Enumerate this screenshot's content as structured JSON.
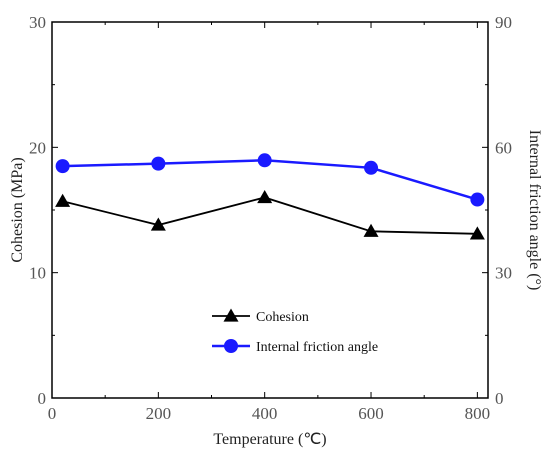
{
  "chart_data": {
    "type": "line",
    "x": [
      20,
      200,
      400,
      600,
      800
    ],
    "xlabel": "Temperature (℃)",
    "xlim": [
      0,
      820
    ],
    "xticks": [
      0,
      200,
      400,
      600,
      800
    ],
    "ylabel_left": "Cohesion (MPa)",
    "ylim_left": [
      0,
      30
    ],
    "yticks_left": [
      0,
      10,
      20,
      30
    ],
    "ylabel_right": "Internal friction angle (°)",
    "ylim_right": [
      0,
      90
    ],
    "yticks_right": [
      0,
      30,
      60,
      90
    ],
    "legend_position": "lower-center",
    "series": [
      {
        "name": "Cohesion",
        "axis": "left",
        "marker": "triangle",
        "color": "#000000",
        "values": [
          15.7,
          13.8,
          16.0,
          13.3,
          13.1
        ]
      },
      {
        "name": "Internal friction angle",
        "axis": "right",
        "marker": "circle",
        "color": "#1a1aff",
        "values": [
          55.5,
          56.1,
          56.9,
          55.1,
          47.5
        ]
      }
    ]
  }
}
